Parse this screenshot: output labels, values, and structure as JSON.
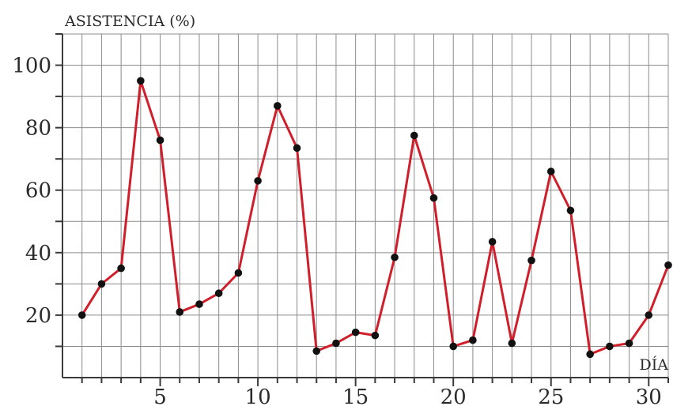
{
  "chart_data": {
    "type": "line",
    "ylabel": "ASISTENCIA (%)",
    "xlabel": "DÍA",
    "x_ticks": [
      5,
      10,
      15,
      20,
      25,
      30
    ],
    "y_ticks": [
      20,
      40,
      60,
      80,
      100
    ],
    "xlim": [
      0,
      31
    ],
    "ylim": [
      0,
      110
    ],
    "grid": true,
    "colors": {
      "line": "#d01e2a",
      "point": "#111111",
      "grid": "#8c8c8c",
      "axis": "#3a3a3a"
    },
    "series": [
      {
        "x": [
          1,
          2,
          3,
          4,
          5,
          6,
          7,
          8,
          9,
          10,
          11,
          12,
          13,
          14,
          15,
          16,
          17,
          18,
          19,
          20,
          21,
          22,
          23,
          24,
          25,
          26,
          27,
          28,
          29,
          30,
          31
        ],
        "values": [
          20,
          30,
          35,
          95,
          76,
          21,
          23.5,
          27,
          33.5,
          63,
          87,
          73.5,
          8.5,
          11,
          14.5,
          13.5,
          38.5,
          77.5,
          57.5,
          10,
          12,
          43.5,
          11,
          37.5,
          66,
          53.5,
          7.5,
          10,
          11,
          20,
          36
        ]
      }
    ]
  }
}
